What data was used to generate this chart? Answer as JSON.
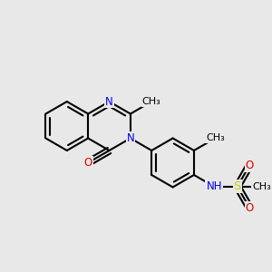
{
  "bg_color": "#e8e8e8",
  "bond_color": "#000000",
  "bond_width": 1.5,
  "atom_colors": {
    "N": "#0000ee",
    "O": "#dd0000",
    "S": "#cccc00",
    "C": "#000000"
  },
  "font_size": 8.5,
  "xlim": [
    -2.7,
    3.0
  ],
  "ylim": [
    -2.1,
    2.1
  ],
  "bl": 0.54
}
